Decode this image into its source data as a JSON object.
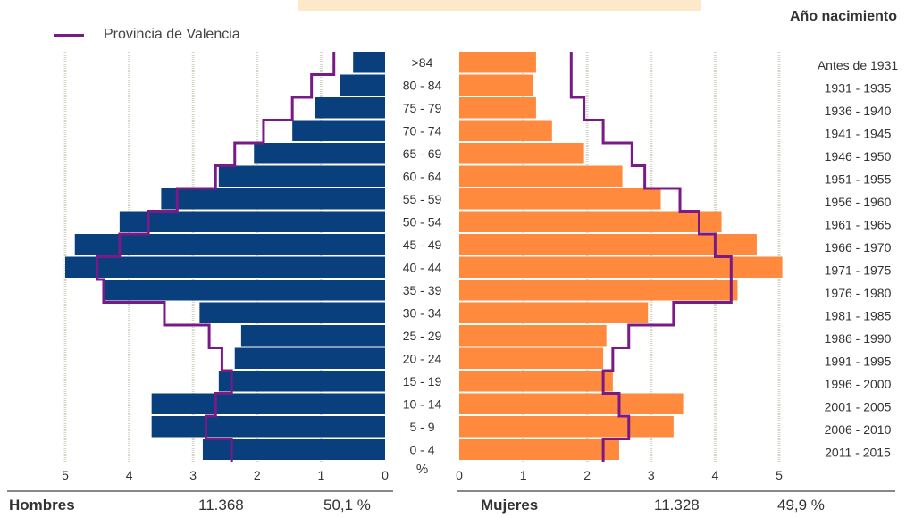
{
  "legend": {
    "label": "Provincia de Valencia",
    "color": "#7a1a87"
  },
  "colors": {
    "hombres": "#0a3f7e",
    "mujeres": "#ff8a3d",
    "province_line": "#7a1a87",
    "grid": "#d8d4c8"
  },
  "year_axis_title": "Año nacimiento",
  "summary": {
    "hombres_label": "Hombres",
    "hombres_total": "11.368",
    "hombres_pct": "50,1 %",
    "mujeres_label": "Mujeres",
    "mujeres_total": "11.328",
    "mujeres_pct": "49,9 %"
  },
  "chart_data": {
    "type": "bar",
    "orientation": "horizontal-population-pyramid",
    "categories": [
      ">84",
      "80 - 84",
      "75 - 79",
      "70 - 74",
      "65 - 69",
      "60 - 64",
      "55 - 59",
      "50 - 54",
      "45 - 49",
      "40 - 44",
      "35 - 39",
      "30 - 34",
      "25 - 29",
      "20 - 24",
      "15 - 19",
      "10 - 14",
      "5 - 9",
      "0 - 4"
    ],
    "birth_years": [
      "Antes de 1931",
      "1931 - 1935",
      "1936 - 1940",
      "1941 - 1945",
      "1946 - 1950",
      "1951 - 1955",
      "1956 - 1960",
      "1961 - 1965",
      "1966 - 1970",
      "1971 - 1975",
      "1976 - 1980",
      "1981 - 1985",
      "1986 - 1990",
      "1991 - 1995",
      "1996 - 2000",
      "2001 - 2005",
      "2006 - 2010",
      "2011 - 2015"
    ],
    "center_label": "%",
    "series": [
      {
        "name": "Hombres",
        "values": [
          0.5,
          0.7,
          1.1,
          1.45,
          2.05,
          2.6,
          3.5,
          4.15,
          4.85,
          5.0,
          4.4,
          2.9,
          2.25,
          2.35,
          2.6,
          3.65,
          3.65,
          2.85
        ]
      },
      {
        "name": "Mujeres",
        "values": [
          1.2,
          1.15,
          1.2,
          1.45,
          1.95,
          2.55,
          3.15,
          4.1,
          4.65,
          5.05,
          4.35,
          2.95,
          2.3,
          2.25,
          2.4,
          3.5,
          3.35,
          2.5
        ]
      },
      {
        "name": "Provincia de Valencia",
        "hombres": [
          0.8,
          1.15,
          1.45,
          1.9,
          2.35,
          2.65,
          3.25,
          3.7,
          4.15,
          4.5,
          4.4,
          3.45,
          2.75,
          2.55,
          2.4,
          2.65,
          2.8,
          2.4
        ],
        "mujeres": [
          1.75,
          1.75,
          1.95,
          2.25,
          2.7,
          2.9,
          3.45,
          3.75,
          4.0,
          4.25,
          4.25,
          3.35,
          2.65,
          2.4,
          2.25,
          2.5,
          2.65,
          2.25
        ]
      }
    ],
    "x_ticks": [
      "5",
      "4",
      "3",
      "2",
      "1",
      "0"
    ],
    "x_ticks_right": [
      "0",
      "1",
      "2",
      "3",
      "4",
      "5"
    ],
    "xlim": [
      0,
      5
    ],
    "grid": true
  }
}
